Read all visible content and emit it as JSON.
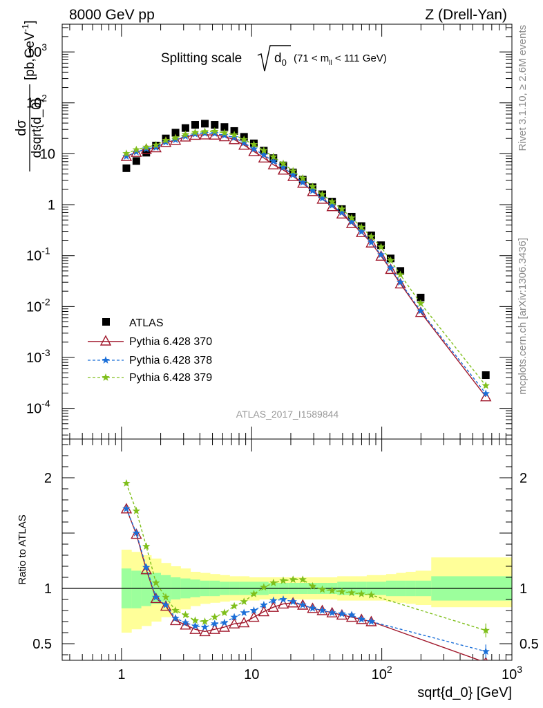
{
  "header": {
    "left_label": "8000 GeV pp",
    "right_label": "Z (Drell-Yan)"
  },
  "side_labels": {
    "rivet": "Rivet 3.1.10, ≥ 2.6M events",
    "mcplots": "mcplots.cern.ch [arXiv:1306.3436]"
  },
  "analysis_id": "ATLAS_2017_I1589844",
  "main_title": {
    "prefix": "Splitting scale",
    "var": "d",
    "var_sub": "0",
    "range_pre": "(71 < m",
    "range_sub": "ll",
    "range_post": " < 111 GeV)"
  },
  "colors": {
    "data": "#000000",
    "p370": "#a0172b",
    "p378": "#1b6fd8",
    "p379": "#7fbf1b",
    "band_inner": "#9cff9c",
    "band_outer": "#ffff99"
  },
  "chart_data": [
    {
      "type": "scatter",
      "panel": "main",
      "xlabel": "sqrt{d_0} [GeV]",
      "ylabel_num": "dσ",
      "ylabel_den": "dsqrt{d_0}",
      "ylabel_unit": "[pb,GeV",
      "ylabel_unit_exp": "-1",
      "x_scale": "log",
      "y_scale": "log",
      "xlim": [
        0.35,
        1000
      ],
      "ylim": [
        2.5e-05,
        3500
      ],
      "y_ticks": [
        {
          "value": 0.0001,
          "base": "10",
          "exp": "-4"
        },
        {
          "value": 0.001,
          "base": "10",
          "exp": "-3"
        },
        {
          "value": 0.01,
          "base": "10",
          "exp": "-2"
        },
        {
          "value": 0.1,
          "base": "10",
          "exp": "-1"
        },
        {
          "value": 1,
          "base": "1",
          "exp": ""
        },
        {
          "value": 10,
          "base": "10",
          "exp": ""
        },
        {
          "value": 100,
          "base": "10",
          "exp": "2"
        },
        {
          "value": 1000,
          "base": "10",
          "exp": "3"
        }
      ],
      "legend_position": "lower-left",
      "x": [
        1.09,
        1.3,
        1.55,
        1.84,
        2.19,
        2.6,
        3.1,
        3.68,
        4.37,
        5.2,
        6.18,
        7.35,
        8.74,
        10.4,
        12.4,
        14.7,
        17.5,
        20.8,
        24.7,
        29.4,
        34.9,
        41.5,
        49.4,
        58.7,
        69.8,
        83.0,
        98.7,
        117,
        139,
        199,
        630
      ],
      "series": [
        {
          "name": "ATLAS",
          "marker": "square",
          "values": [
            5.2,
            7.2,
            10.5,
            14.5,
            20,
            26,
            32,
            37,
            39,
            37,
            33.5,
            28,
            21.5,
            16,
            11.5,
            8.2,
            5.9,
            4.3,
            3.1,
            2.2,
            1.6,
            1.15,
            0.82,
            0.58,
            0.38,
            0.25,
            0.16,
            0.088,
            0.05,
            0.015,
            0.00045
          ]
        },
        {
          "name": "Pythia 6.428 370",
          "marker": "triangle",
          "values": [
            8.9,
            10.7,
            12.3,
            13.2,
            16.8,
            18.5,
            21.5,
            23.2,
            23.6,
            23.4,
            21.7,
            19.0,
            14.8,
            11.1,
            8.3,
            6.1,
            4.8,
            3.6,
            2.66,
            1.82,
            1.29,
            0.92,
            0.66,
            0.43,
            0.285,
            0.178,
            0.098,
            0.054,
            0.028,
            0.0077,
            0.00017
          ]
        },
        {
          "name": "Pythia 6.428 378",
          "marker": "star",
          "values": [
            8.9,
            10.8,
            12.5,
            13.3,
            16.9,
            18.8,
            22,
            24.3,
            25.2,
            25,
            23,
            20.8,
            16.4,
            12.4,
            9.5,
            7.1,
            5.4,
            3.85,
            2.73,
            1.88,
            1.34,
            0.97,
            0.7,
            0.46,
            0.295,
            0.182,
            0.104,
            0.057,
            0.03,
            0.0082,
            0.000195
          ]
        },
        {
          "name": "Pythia 6.428 379",
          "marker": "star",
          "values": [
            10.1,
            12.0,
            13.5,
            14.8,
            18.3,
            20.5,
            23.8,
            26.3,
            27.2,
            27.6,
            25.8,
            23.5,
            19.0,
            15.2,
            11.6,
            8.7,
            6.4,
            4.6,
            3.3,
            2.26,
            1.59,
            1.14,
            0.82,
            0.55,
            0.36,
            0.235,
            0.148,
            0.08,
            0.042,
            0.0115,
            0.00028
          ]
        }
      ]
    },
    {
      "type": "line",
      "panel": "ratio",
      "ylabel": "Ratio to ATLAS",
      "xlabel": "sqrt{d_0} [GeV]",
      "x_scale": "log",
      "xlim": [
        0.35,
        1000
      ],
      "ylim": [
        0.35,
        2.35
      ],
      "x_ticks": [
        {
          "value": 1,
          "base": "1",
          "exp": ""
        },
        {
          "value": 10,
          "base": "10",
          "exp": ""
        },
        {
          "value": 100,
          "base": "10",
          "exp": "2"
        },
        {
          "value": 1000,
          "base": "10",
          "exp": "3"
        }
      ],
      "y_ticks": [
        "0.5",
        "1",
        "2"
      ],
      "x": [
        1.09,
        1.3,
        1.55,
        1.84,
        2.19,
        2.6,
        3.1,
        3.68,
        4.37,
        5.2,
        6.18,
        7.35,
        8.74,
        10.4,
        12.4,
        14.7,
        17.5,
        20.8,
        24.7,
        29.4,
        34.9,
        41.5,
        49.4,
        58.7,
        69.8,
        83.0,
        630
      ],
      "series": [
        {
          "name": "Pythia 6.428 370",
          "values": [
            1.72,
            1.49,
            1.17,
            0.91,
            0.84,
            0.71,
            0.67,
            0.63,
            0.61,
            0.63,
            0.65,
            0.68,
            0.69,
            0.74,
            0.79,
            0.83,
            0.86,
            0.87,
            0.85,
            0.82,
            0.8,
            0.78,
            0.76,
            0.74,
            0.72,
            0.7,
            0.33
          ]
        },
        {
          "name": "Pythia 6.428 378",
          "values": [
            1.72,
            1.5,
            1.19,
            0.92,
            0.85,
            0.73,
            0.69,
            0.66,
            0.65,
            0.68,
            0.69,
            0.74,
            0.78,
            0.8,
            0.85,
            0.89,
            0.9,
            0.88,
            0.85,
            0.82,
            0.8,
            0.78,
            0.77,
            0.76,
            0.72,
            0.7,
            0.43
          ]
        },
        {
          "name": "Pythia 6.428 379",
          "values": [
            1.95,
            1.7,
            1.38,
            1.05,
            0.92,
            0.8,
            0.76,
            0.71,
            0.7,
            0.74,
            0.78,
            0.84,
            0.88,
            0.95,
            1.01,
            1.05,
            1.07,
            1.08,
            1.08,
            1.02,
            0.99,
            0.98,
            0.97,
            0.96,
            0.95,
            0.94,
            0.62
          ]
        }
      ],
      "bands": {
        "x_edges": [
          1.0,
          1.19,
          1.42,
          1.69,
          2.01,
          2.39,
          2.84,
          3.38,
          4.02,
          4.78,
          5.69,
          6.76,
          8.04,
          9.56,
          11.4,
          13.5,
          16.1,
          19.1,
          22.8,
          27.1,
          32.2,
          38.3,
          45.5,
          54.2,
          64.4,
          76.6,
          91.1,
          108,
          129,
          153,
          182,
          240,
          1000
        ],
        "inner_lo": [
          0.82,
          0.82,
          0.84,
          0.86,
          0.88,
          0.9,
          0.91,
          0.92,
          0.93,
          0.93,
          0.94,
          0.94,
          0.94,
          0.94,
          0.94,
          0.95,
          0.95,
          0.95,
          0.95,
          0.95,
          0.95,
          0.95,
          0.94,
          0.94,
          0.94,
          0.94,
          0.94,
          0.93,
          0.93,
          0.93,
          0.93,
          0.89
        ],
        "inner_hi": [
          1.18,
          1.16,
          1.15,
          1.14,
          1.12,
          1.1,
          1.09,
          1.08,
          1.07,
          1.07,
          1.06,
          1.06,
          1.06,
          1.06,
          1.06,
          1.05,
          1.05,
          1.05,
          1.05,
          1.05,
          1.05,
          1.05,
          1.06,
          1.06,
          1.06,
          1.06,
          1.06,
          1.07,
          1.07,
          1.07,
          1.07,
          1.11
        ],
        "outer_lo": [
          0.6,
          0.63,
          0.66,
          0.7,
          0.74,
          0.78,
          0.81,
          0.84,
          0.86,
          0.87,
          0.88,
          0.89,
          0.89,
          0.89,
          0.9,
          0.9,
          0.9,
          0.9,
          0.9,
          0.9,
          0.9,
          0.9,
          0.89,
          0.89,
          0.89,
          0.89,
          0.89,
          0.88,
          0.87,
          0.86,
          0.85,
          0.83
        ],
        "outer_hi": [
          1.35,
          1.33,
          1.3,
          1.27,
          1.23,
          1.2,
          1.18,
          1.15,
          1.14,
          1.13,
          1.12,
          1.11,
          1.11,
          1.1,
          1.1,
          1.1,
          1.1,
          1.1,
          1.1,
          1.1,
          1.1,
          1.1,
          1.11,
          1.11,
          1.11,
          1.12,
          1.12,
          1.13,
          1.14,
          1.15,
          1.16,
          1.28
        ]
      }
    }
  ]
}
